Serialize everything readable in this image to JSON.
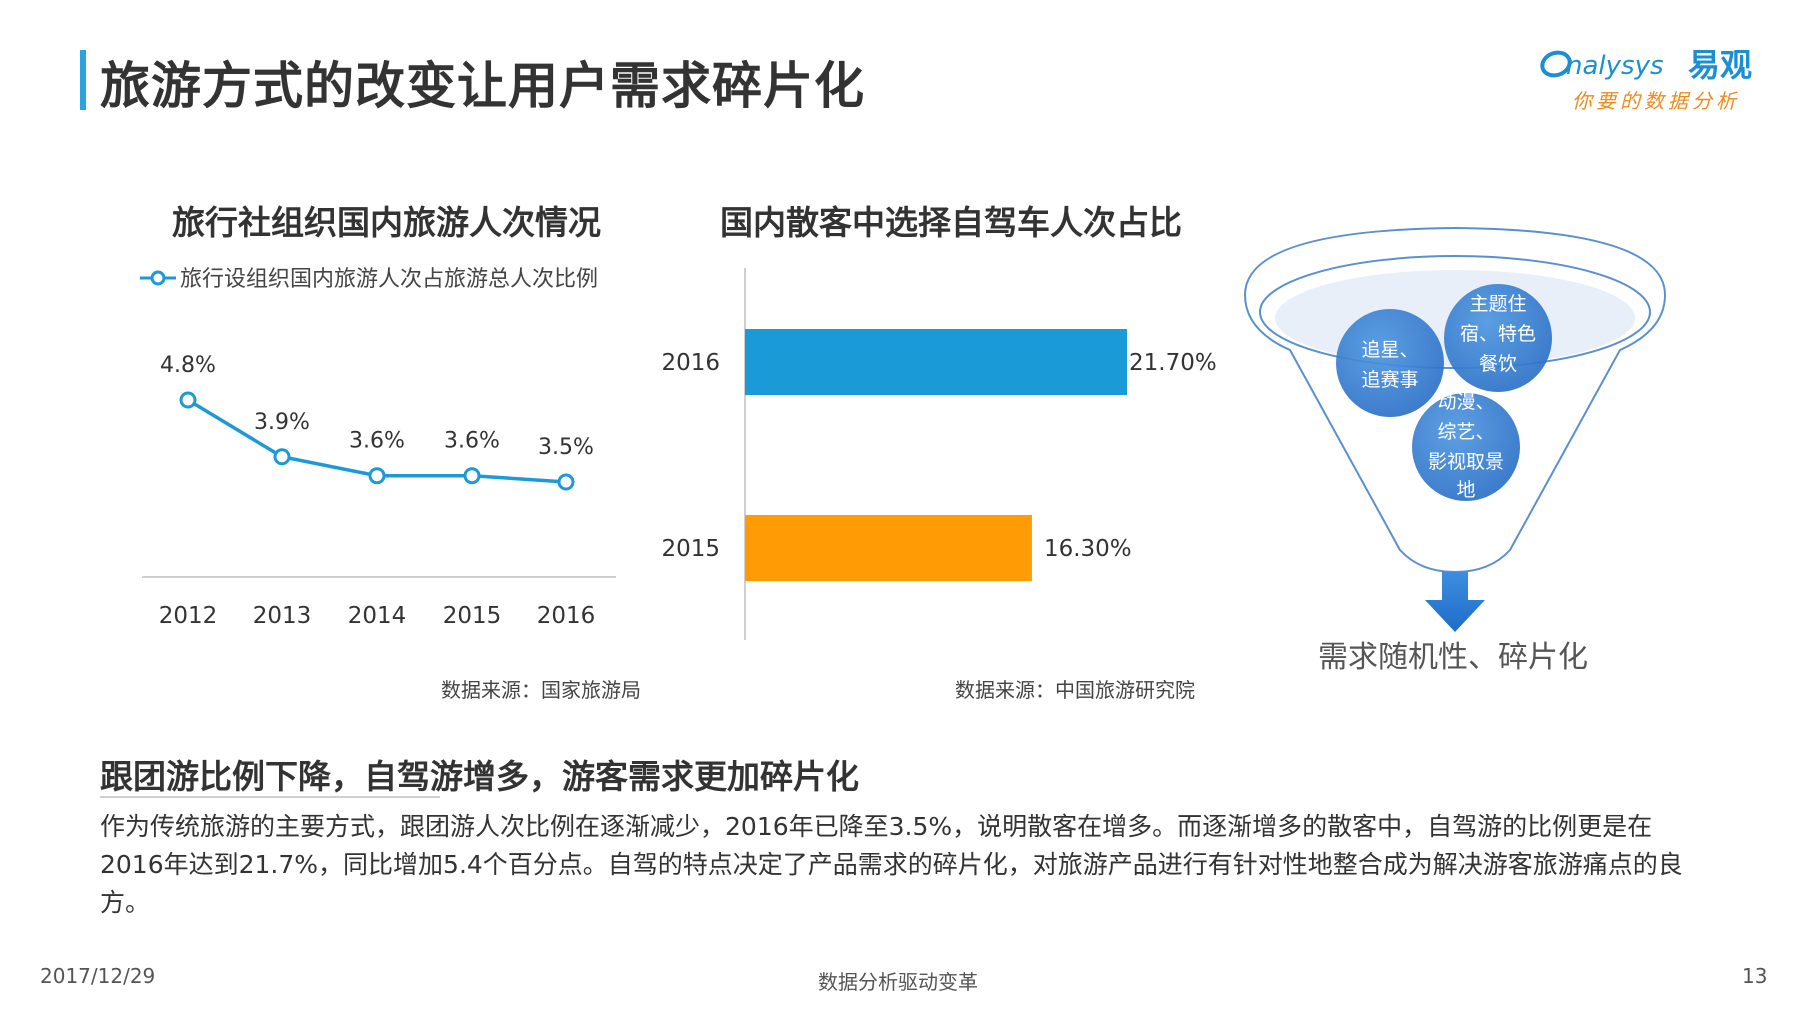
{
  "page": {
    "title": "旅游方式的改变让用户需求碎片化",
    "logo": {
      "brand_latin": "nalysys",
      "brand_cn": "易观",
      "tagline": "你要的数据分析"
    },
    "footer": {
      "date": "2017/12/29",
      "center": "数据分析驱动变革",
      "page_number": "13"
    },
    "section_heading": "跟团游比例下降，自驾游增多，游客需求更加碎片化",
    "body_text": "作为传统旅游的主要方式，跟团游人次比例在逐渐减少，2016年已降至3.5%，说明散客在增多。而逐渐增多的散客中，自驾游的比例更是在2016年达到21.7%，同比增加5.4个百分点。自驾的特点决定了产品需求的碎片化，对旅游产品进行有针对性地整合成为解决游客旅游痛点的良方。",
    "funnel": {
      "bubbles": [
        "追星、追赛事",
        "主题住宿、特色餐饮",
        "动漫、综艺、影视取景地"
      ],
      "caption": "需求随机性、碎片化"
    },
    "colors": {
      "accent": "#2aa3e0",
      "line": "#1d9ad6",
      "bar_2016": "#1a9ad7",
      "bar_2015": "#ff9c05",
      "bubble": "#3b86d6"
    }
  },
  "chart_data": [
    {
      "type": "line",
      "title": "旅行社组织国内旅游人次情况",
      "legend": "旅行设组织国内旅游人次占旅游总人次比例",
      "categories": [
        "2012",
        "2013",
        "2014",
        "2015",
        "2016"
      ],
      "values": [
        4.8,
        3.9,
        3.6,
        3.6,
        3.5
      ],
      "labels": [
        "4.8%",
        "3.9%",
        "3.6%",
        "3.6%",
        "3.5%"
      ],
      "unit": "%",
      "source": "数据来源：国家旅游局",
      "grid": false
    },
    {
      "type": "bar",
      "orientation": "horizontal",
      "title": "国内散客中选择自驾车人次占比",
      "categories": [
        "2016",
        "2015"
      ],
      "values": [
        21.7,
        16.3
      ],
      "labels": [
        "21.70%",
        "16.30%"
      ],
      "unit": "%",
      "source": "数据来源：中国旅游研究院",
      "grid": false
    }
  ]
}
